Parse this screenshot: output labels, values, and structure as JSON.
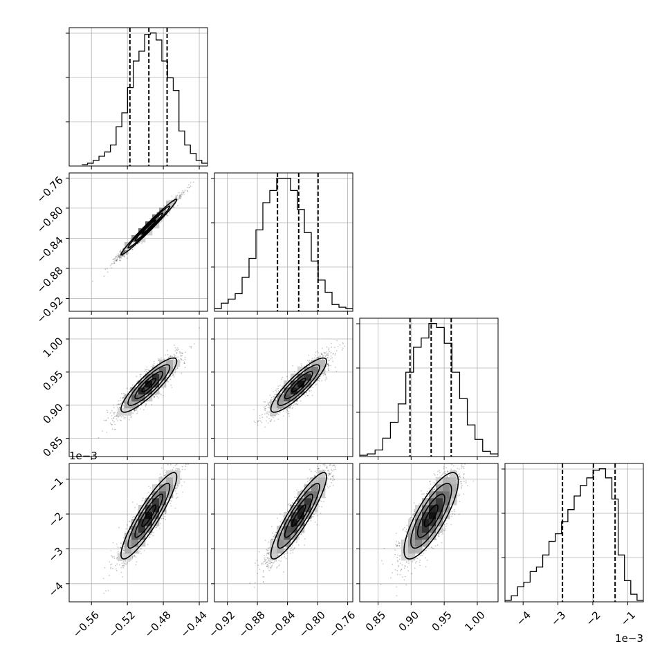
{
  "chart_data": {
    "type": "corner",
    "title": "",
    "parameters": [
      {
        "xlim": [
          -0.5848,
          -0.4308
        ],
        "ticks": [
          -0.56,
          -0.52,
          -0.48,
          -0.44
        ],
        "tick_labels": [
          "−0.56",
          "−0.52",
          "−0.48",
          "−0.44"
        ],
        "quantile_lines": [
          -0.5172,
          -0.4961,
          -0.4758
        ],
        "hist_range": [
          -0.5707,
          -0.4308
        ],
        "hist_counts": [
          1,
          2,
          4,
          7,
          10,
          15,
          28,
          38,
          56,
          75,
          82,
          94,
          95,
          90,
          75,
          63,
          54,
          25,
          15,
          9,
          4,
          2
        ]
      },
      {
        "xlim": [
          -0.9371,
          -0.7532
        ],
        "ticks": [
          -0.92,
          -0.88,
          -0.84,
          -0.8,
          -0.76
        ],
        "tick_labels": [
          "−0.92",
          "−0.88",
          "−0.84",
          "−0.80",
          "−0.76"
        ],
        "quantile_lines": [
          -0.8533,
          -0.8251,
          -0.7994
        ],
        "hist_range": [
          -0.9371,
          -0.7532
        ],
        "hist_counts": [
          2,
          6,
          9,
          13,
          25,
          39,
          60,
          80,
          89,
          98,
          98,
          89,
          75,
          58,
          37,
          23,
          14,
          5,
          3,
          2
        ]
      },
      {
        "xlim": [
          0.8223,
          1.0314
        ],
        "ticks": [
          0.85,
          0.9,
          0.95,
          1.0
        ],
        "tick_labels": [
          "0.85",
          "0.90",
          "0.95",
          "1.00"
        ],
        "quantile_lines": [
          0.8983,
          0.9303,
          0.9606
        ],
        "hist_range": [
          0.8223,
          1.0314
        ],
        "hist_counts": [
          1,
          2,
          5,
          14,
          26,
          40,
          64,
          83,
          90,
          101,
          98,
          86,
          64,
          44,
          24,
          13,
          4,
          2
        ]
      },
      {
        "xlim": [
          -4.52,
          -0.55
        ],
        "ticks": [
          -4,
          -3,
          -2,
          -1
        ],
        "tick_labels": [
          "−4",
          "−3",
          "−2",
          "−1"
        ],
        "quantile_lines": [
          -2.87,
          -1.98,
          -1.36
        ],
        "hist_range": [
          -4.52,
          -0.55
        ],
        "hist_counts": [
          1,
          4,
          10,
          13,
          20,
          23,
          31,
          40,
          45,
          53,
          61,
          70,
          77,
          82,
          87,
          88,
          82,
          68,
          31,
          14,
          5,
          1
        ],
        "scale_label": "1e−3"
      }
    ],
    "pairs": [
      {
        "row": 1,
        "col": 0,
        "mean": [
          -0.4961,
          -0.8251
        ],
        "sd": [
          0.0155,
          0.0185
        ],
        "corr": 0.985
      },
      {
        "row": 2,
        "col": 0,
        "mean": [
          -0.4961,
          0.9303
        ],
        "sd": [
          0.0155,
          0.0205
        ],
        "corr": 0.88
      },
      {
        "row": 2,
        "col": 1,
        "mean": [
          -0.8251,
          0.9303
        ],
        "sd": [
          0.0185,
          0.0205
        ],
        "corr": 0.88
      },
      {
        "row": 3,
        "col": 0,
        "mean": [
          -0.4961,
          -2.05
        ],
        "sd": [
          0.0155,
          0.62
        ],
        "corr": 0.9
      },
      {
        "row": 3,
        "col": 1,
        "mean": [
          -0.8251,
          -2.05
        ],
        "sd": [
          0.0185,
          0.62
        ],
        "corr": 0.9
      },
      {
        "row": 3,
        "col": 2,
        "mean": [
          0.9303,
          -2.05
        ],
        "sd": [
          0.0205,
          0.62
        ],
        "corr": 0.8
      }
    ],
    "row_scale_labels": {
      "3": "1e−3"
    },
    "grid": true,
    "colors": {
      "axes": "#000000",
      "grid": "#b0b0b0",
      "points": "#000000"
    }
  }
}
